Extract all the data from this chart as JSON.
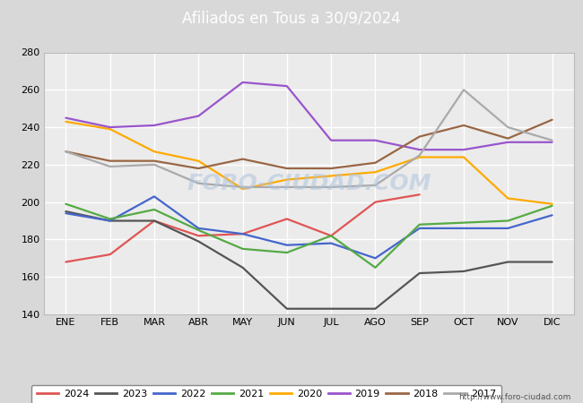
{
  "title": "Afiliados en Tous a 30/9/2024",
  "title_color": "#ffffff",
  "title_bg_color": "#4c8fbd",
  "months": [
    "ENE",
    "FEB",
    "MAR",
    "ABR",
    "MAY",
    "JUN",
    "JUL",
    "AGO",
    "SEP",
    "OCT",
    "NOV",
    "DIC"
  ],
  "ylim": [
    140,
    280
  ],
  "yticks": [
    140,
    160,
    180,
    200,
    220,
    240,
    260,
    280
  ],
  "series": {
    "2024": {
      "color": "#e05555",
      "values": [
        168,
        172,
        190,
        182,
        183,
        191,
        182,
        200,
        204,
        null,
        null,
        null
      ]
    },
    "2023": {
      "color": "#555555",
      "values": [
        195,
        190,
        190,
        179,
        165,
        143,
        143,
        143,
        162,
        163,
        168,
        168
      ]
    },
    "2022": {
      "color": "#4466cc",
      "values": [
        194,
        190,
        203,
        186,
        183,
        177,
        178,
        170,
        186,
        186,
        186,
        193
      ]
    },
    "2021": {
      "color": "#55aa44",
      "values": [
        199,
        191,
        196,
        185,
        175,
        173,
        182,
        165,
        188,
        189,
        190,
        198
      ]
    },
    "2020": {
      "color": "#ffaa00",
      "values": [
        243,
        239,
        227,
        222,
        207,
        212,
        214,
        216,
        224,
        224,
        202,
        199
      ]
    },
    "2019": {
      "color": "#9955cc",
      "values": [
        245,
        240,
        241,
        246,
        264,
        262,
        233,
        233,
        228,
        228,
        232,
        232
      ]
    },
    "2018": {
      "color": "#996644",
      "values": [
        227,
        222,
        222,
        218,
        223,
        218,
        218,
        221,
        235,
        241,
        234,
        244
      ]
    },
    "2017": {
      "color": "#aaaaaa",
      "values": [
        227,
        219,
        220,
        210,
        208,
        208,
        208,
        209,
        225,
        260,
        240,
        233
      ]
    }
  },
  "watermark": "FORO-CIUDAD.COM",
  "url": "http://www.foro-ciudad.com",
  "bg_color": "#d8d8d8",
  "plot_bg_color": "#ebebeb",
  "grid_color": "#ffffff",
  "legend_years": [
    "2024",
    "2023",
    "2022",
    "2021",
    "2020",
    "2019",
    "2018",
    "2017"
  ],
  "fig_width": 6.5,
  "fig_height": 4.5
}
